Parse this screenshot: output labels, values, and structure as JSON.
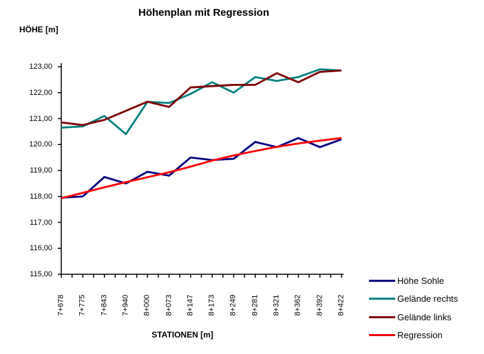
{
  "chart_data": {
    "type": "line",
    "title": "Höhenplan mit Regression",
    "xlabel": "STATIONEN [m]",
    "ylabel": "HÖHE [m]",
    "ylim": [
      115,
      123
    ],
    "ytick_labels": [
      "123,00",
      "122,00",
      "121,00",
      "120,00",
      "119,00",
      "118,00",
      "117,00",
      "116,00",
      "115,00"
    ],
    "grid": false,
    "legend_position": "right",
    "categories": [
      "7+678",
      "7+775",
      "7+843",
      "7+940",
      "8+000",
      "8+073",
      "8+147",
      "8+173",
      "8+249",
      "8+281",
      "8+321",
      "8+362",
      "8+392",
      "8+422"
    ],
    "series": [
      {
        "name": "Höhe Sohle",
        "color": "#000080",
        "values": [
          117.95,
          118.0,
          118.75,
          118.5,
          118.95,
          118.8,
          119.5,
          119.4,
          119.45,
          120.1,
          119.9,
          120.25,
          119.9,
          120.2
        ]
      },
      {
        "name": "Gelände rechts",
        "color": "#008080",
        "values": [
          120.65,
          120.7,
          121.1,
          120.4,
          121.65,
          121.6,
          121.95,
          122.4,
          122.0,
          122.6,
          122.45,
          122.6,
          122.9,
          122.85
        ]
      },
      {
        "name": "Gelände links",
        "color": "#800000",
        "values": [
          120.85,
          120.75,
          120.95,
          121.3,
          121.65,
          121.45,
          122.2,
          122.25,
          122.3,
          122.3,
          122.75,
          122.4,
          122.8,
          122.85
        ]
      },
      {
        "name": "Regression",
        "color": "#FF0000",
        "values": [
          117.93,
          118.14,
          118.35,
          118.55,
          118.74,
          118.93,
          119.15,
          119.38,
          119.58,
          119.75,
          119.91,
          120.04,
          120.15,
          120.25
        ]
      }
    ]
  }
}
